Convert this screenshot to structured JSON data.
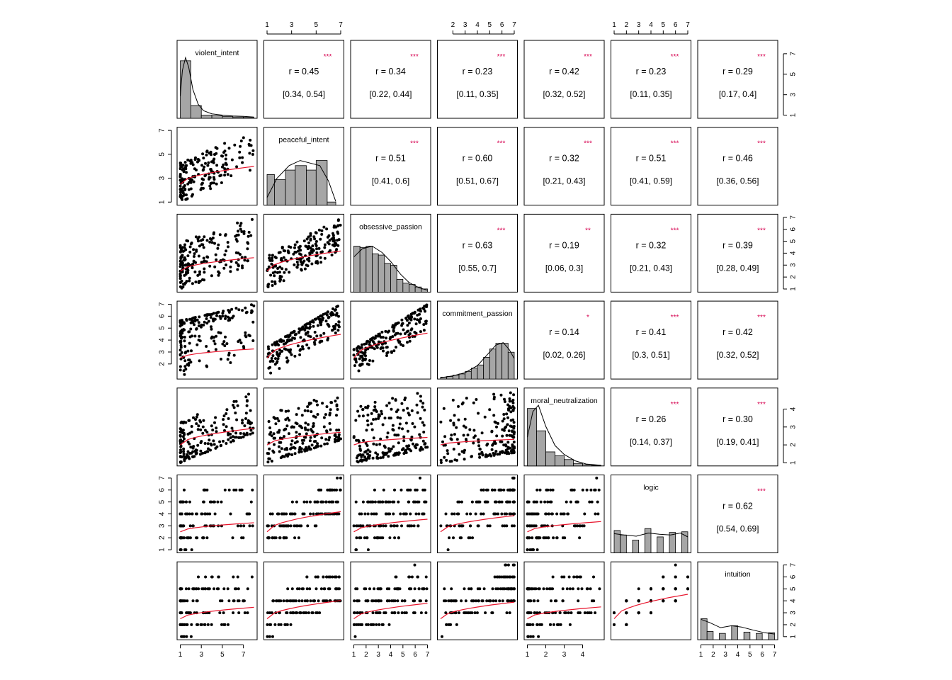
{
  "chart_data": {
    "type": "scatter",
    "title": "",
    "variables": [
      "violent_intent",
      "peaceful_intent",
      "obsessive_passion",
      "commitment_passion",
      "moral_neutralization",
      "logic",
      "intuition"
    ],
    "correlations": [
      {
        "row": 0,
        "col": 1,
        "r": "r  = 0.45",
        "ci": "[0.34, 0.54]",
        "stars": "***"
      },
      {
        "row": 0,
        "col": 2,
        "r": "r  = 0.34",
        "ci": "[0.22, 0.44]",
        "stars": "***"
      },
      {
        "row": 0,
        "col": 3,
        "r": "r  = 0.23",
        "ci": "[0.11, 0.35]",
        "stars": "***"
      },
      {
        "row": 0,
        "col": 4,
        "r": "r  = 0.42",
        "ci": "[0.32, 0.52]",
        "stars": "***"
      },
      {
        "row": 0,
        "col": 5,
        "r": "r  = 0.23",
        "ci": "[0.11, 0.35]",
        "stars": "***"
      },
      {
        "row": 0,
        "col": 6,
        "r": "r  = 0.29",
        "ci": "[0.17, 0.4]",
        "stars": "***"
      },
      {
        "row": 1,
        "col": 2,
        "r": "r  = 0.51",
        "ci": "[0.41, 0.6]",
        "stars": "***"
      },
      {
        "row": 1,
        "col": 3,
        "r": "r  = 0.60",
        "ci": "[0.51, 0.67]",
        "stars": "***"
      },
      {
        "row": 1,
        "col": 4,
        "r": "r  = 0.32",
        "ci": "[0.21, 0.43]",
        "stars": "***"
      },
      {
        "row": 1,
        "col": 5,
        "r": "r  = 0.51",
        "ci": "[0.41, 0.59]",
        "stars": "***"
      },
      {
        "row": 1,
        "col": 6,
        "r": "r  = 0.46",
        "ci": "[0.36, 0.56]",
        "stars": "***"
      },
      {
        "row": 2,
        "col": 3,
        "r": "r  = 0.63",
        "ci": "[0.55, 0.7]",
        "stars": "***"
      },
      {
        "row": 2,
        "col": 4,
        "r": "r  = 0.19",
        "ci": "[0.06, 0.3]",
        "stars": "**"
      },
      {
        "row": 2,
        "col": 5,
        "r": "r  = 0.32",
        "ci": "[0.21, 0.43]",
        "stars": "***"
      },
      {
        "row": 2,
        "col": 6,
        "r": "r  = 0.39",
        "ci": "[0.28, 0.49]",
        "stars": "***"
      },
      {
        "row": 3,
        "col": 4,
        "r": "r  = 0.14",
        "ci": "[0.02, 0.26]",
        "stars": "*"
      },
      {
        "row": 3,
        "col": 5,
        "r": "r  = 0.41",
        "ci": "[0.3, 0.51]",
        "stars": "***"
      },
      {
        "row": 3,
        "col": 6,
        "r": "r  = 0.42",
        "ci": "[0.32, 0.52]",
        "stars": "***"
      },
      {
        "row": 4,
        "col": 5,
        "r": "r  = 0.26",
        "ci": "[0.14, 0.37]",
        "stars": "***"
      },
      {
        "row": 4,
        "col": 6,
        "r": "r  = 0.30",
        "ci": "[0.19, 0.41]",
        "stars": "***"
      },
      {
        "row": 5,
        "col": 6,
        "r": "r  = 0.62",
        "ci": "[0.54, 0.69]",
        "stars": "***"
      }
    ],
    "histograms": [
      {
        "var": "violent_intent",
        "bins": [
          [
            1,
            2,
            0.9
          ],
          [
            2,
            3,
            0.2
          ],
          [
            3,
            4,
            0.05
          ],
          [
            4,
            5,
            0.04
          ],
          [
            5,
            6,
            0.03
          ],
          [
            6,
            7,
            0.02
          ],
          [
            7,
            8,
            0.015
          ]
        ],
        "density": [
          [
            1,
            0.35
          ],
          [
            1.2,
            0.75
          ],
          [
            1.5,
            0.95
          ],
          [
            1.8,
            0.8
          ],
          [
            2.2,
            0.45
          ],
          [
            2.7,
            0.22
          ],
          [
            3.2,
            0.12
          ],
          [
            4,
            0.07
          ],
          [
            5,
            0.05
          ],
          [
            6,
            0.035
          ],
          [
            7,
            0.03
          ],
          [
            8,
            0.02
          ]
        ]
      },
      {
        "var": "peaceful_intent",
        "bins": [
          [
            1,
            1.6,
            0.48
          ],
          [
            1.6,
            2.5,
            0.4
          ],
          [
            2.5,
            3.3,
            0.55
          ],
          [
            3.3,
            4.2,
            0.62
          ],
          [
            4.2,
            5.0,
            0.55
          ],
          [
            5.0,
            5.9,
            0.7
          ],
          [
            5.9,
            6.6,
            0.05
          ]
        ],
        "density": [
          [
            1,
            0.12
          ],
          [
            1.8,
            0.42
          ],
          [
            2.8,
            0.62
          ],
          [
            3.7,
            0.7
          ],
          [
            4.5,
            0.66
          ],
          [
            5.3,
            0.62
          ],
          [
            6.0,
            0.38
          ],
          [
            6.6,
            0.06
          ]
        ]
      },
      {
        "var": "obsessive_passion",
        "bins": [
          [
            1,
            1.5,
            0.72
          ],
          [
            1.5,
            2,
            0.7
          ],
          [
            2,
            2.5,
            0.72
          ],
          [
            2.5,
            3,
            0.6
          ],
          [
            3,
            3.5,
            0.58
          ],
          [
            3.5,
            4,
            0.45
          ],
          [
            4,
            4.5,
            0.42
          ],
          [
            4.5,
            5,
            0.2
          ],
          [
            5,
            5.5,
            0.14
          ],
          [
            5.5,
            6,
            0.12
          ],
          [
            6,
            6.5,
            0.08
          ],
          [
            6.5,
            7,
            0.05
          ]
        ],
        "density": [
          [
            1,
            0.55
          ],
          [
            1.7,
            0.68
          ],
          [
            2.5,
            0.72
          ],
          [
            3.3,
            0.62
          ],
          [
            4.0,
            0.48
          ],
          [
            4.8,
            0.28
          ],
          [
            5.5,
            0.15
          ],
          [
            6.3,
            0.07
          ],
          [
            7,
            0.03
          ]
        ]
      },
      {
        "var": "commitment_passion",
        "bins": [
          [
            1,
            1.5,
            0.03
          ],
          [
            1.5,
            2,
            0.04
          ],
          [
            2,
            2.5,
            0.06
          ],
          [
            2.5,
            3,
            0.08
          ],
          [
            3,
            3.5,
            0.12
          ],
          [
            3.5,
            4,
            0.17
          ],
          [
            4,
            4.5,
            0.22
          ],
          [
            4.5,
            5,
            0.34
          ],
          [
            5,
            5.5,
            0.47
          ],
          [
            5.5,
            6,
            0.56
          ],
          [
            6,
            6.5,
            0.56
          ],
          [
            6.5,
            7,
            0.42
          ]
        ],
        "density": [
          [
            1,
            0.02
          ],
          [
            2,
            0.05
          ],
          [
            3,
            0.1
          ],
          [
            4,
            0.21
          ],
          [
            4.8,
            0.38
          ],
          [
            5.5,
            0.53
          ],
          [
            6.1,
            0.57
          ],
          [
            6.6,
            0.46
          ],
          [
            7,
            0.32
          ]
        ]
      },
      {
        "var": "moral_neutralization",
        "bins": [
          [
            1,
            1.5,
            0.9
          ],
          [
            1.5,
            2,
            0.55
          ],
          [
            2,
            2.5,
            0.22
          ],
          [
            2.5,
            3,
            0.16
          ],
          [
            3,
            3.5,
            0.1
          ],
          [
            3.5,
            4,
            0.04
          ],
          [
            4,
            4.5,
            0.02
          ],
          [
            4.5,
            5,
            0.01
          ]
        ],
        "density": [
          [
            1,
            0.45
          ],
          [
            1.3,
            0.85
          ],
          [
            1.6,
            0.95
          ],
          [
            2.0,
            0.62
          ],
          [
            2.5,
            0.32
          ],
          [
            3.0,
            0.18
          ],
          [
            3.6,
            0.08
          ],
          [
            4.2,
            0.03
          ],
          [
            5,
            0.01
          ]
        ]
      },
      {
        "var": "logic",
        "bins": [
          [
            1,
            1.5,
            0.35
          ],
          [
            1.5,
            2,
            0.28
          ],
          [
            2.5,
            3,
            0.2
          ],
          [
            3.5,
            4,
            0.38
          ],
          [
            4.5,
            5,
            0.25
          ],
          [
            5.5,
            6,
            0.32
          ],
          [
            6.5,
            7,
            0.33
          ]
        ],
        "density": [
          [
            1,
            0.3
          ],
          [
            1.8,
            0.28
          ],
          [
            2.8,
            0.26
          ],
          [
            3.8,
            0.31
          ],
          [
            4.7,
            0.29
          ],
          [
            5.6,
            0.28
          ],
          [
            6.4,
            0.31
          ],
          [
            7,
            0.25
          ]
        ]
      },
      {
        "var": "intuition",
        "bins": [
          [
            1,
            1.5,
            0.33
          ],
          [
            1.5,
            2,
            0.13
          ],
          [
            2.5,
            3,
            0.1
          ],
          [
            3.5,
            4,
            0.22
          ],
          [
            4.5,
            5,
            0.12
          ],
          [
            5.5,
            6,
            0.1
          ],
          [
            6.5,
            7,
            0.11
          ]
        ],
        "density": [
          [
            1,
            0.32
          ],
          [
            1.7,
            0.27
          ],
          [
            2.6,
            0.19
          ],
          [
            3.5,
            0.22
          ],
          [
            4.3,
            0.2
          ],
          [
            5.3,
            0.15
          ],
          [
            6.2,
            0.11
          ],
          [
            7,
            0.09
          ]
        ]
      }
    ],
    "ranges": [
      [
        1,
        8
      ],
      [
        1,
        7
      ],
      [
        1,
        7
      ],
      [
        1,
        7
      ],
      [
        1,
        5
      ],
      [
        1,
        7
      ],
      [
        1,
        7
      ]
    ],
    "axes": {
      "top": [
        {
          "col": 1,
          "ticks": [
            "1",
            "3",
            "5",
            "7"
          ]
        },
        {
          "col": 3,
          "ticks": [
            "2",
            "3",
            "4",
            "5",
            "6",
            "7"
          ]
        },
        {
          "col": 5,
          "ticks": [
            "1",
            "2",
            "3",
            "4",
            "5",
            "6",
            "7"
          ]
        }
      ],
      "bottom": [
        {
          "col": 0,
          "ticks": [
            "1",
            "3",
            "5",
            "7"
          ]
        },
        {
          "col": 2,
          "ticks": [
            "1",
            "2",
            "3",
            "4",
            "5",
            "6",
            "7"
          ]
        },
        {
          "col": 4,
          "ticks": [
            "1",
            "2",
            "3",
            "4"
          ]
        },
        {
          "col": 6,
          "ticks": [
            "1",
            "2",
            "3",
            "4",
            "5",
            "6",
            "7"
          ]
        }
      ],
      "left": [
        {
          "row": 1,
          "ticks": [
            "1",
            "3",
            "5",
            "7"
          ]
        },
        {
          "row": 3,
          "ticks": [
            "2",
            "3",
            "4",
            "5",
            "6",
            "7"
          ]
        },
        {
          "row": 5,
          "ticks": [
            "1",
            "2",
            "3",
            "4",
            "5",
            "6",
            "7"
          ]
        }
      ],
      "right": [
        {
          "row": 0,
          "ticks": [
            "1",
            "3",
            "5",
            "7"
          ]
        },
        {
          "row": 2,
          "ticks": [
            "1",
            "2",
            "3",
            "4",
            "5",
            "6",
            "7"
          ]
        },
        {
          "row": 4,
          "ticks": [
            "1",
            "2",
            "3",
            "4"
          ]
        },
        {
          "row": 6,
          "ticks": [
            "1",
            "2",
            "3",
            "4",
            "5",
            "6",
            "7"
          ]
        }
      ]
    },
    "colors": {
      "points": "#000000",
      "smooth": "#e8132b",
      "stars": "#d6004f",
      "bars": "#a6a6a6",
      "frame": "#000000"
    },
    "grid": false,
    "legend": "none"
  }
}
